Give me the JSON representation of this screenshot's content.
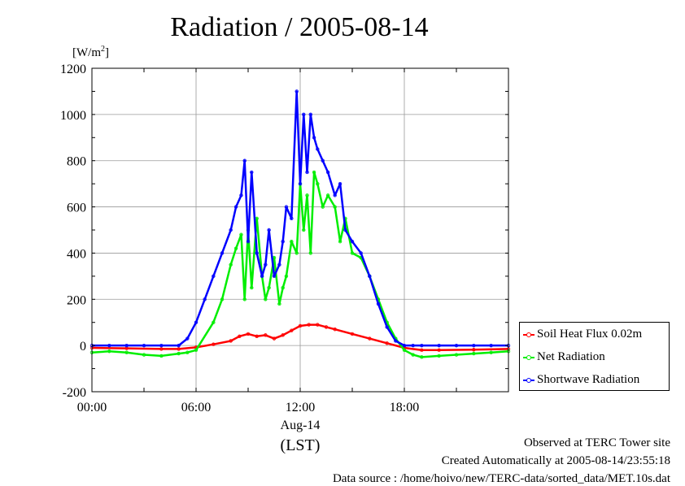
{
  "chart_data": {
    "type": "line",
    "title": "Radiation / 2005-08-14",
    "ylabel_unit_prefix": "[W/m",
    "ylabel_unit_sup": "2",
    "ylabel_unit_suffix": "]",
    "xlabel_date": "Aug-14",
    "xlabel_tz": "(LST)",
    "x_unit": "hour",
    "xlim": [
      0,
      24
    ],
    "ylim": [
      -200,
      1200
    ],
    "yticks": [
      -200,
      0,
      200,
      400,
      600,
      800,
      1000,
      1200
    ],
    "ytick_labels": [
      "-200",
      "0",
      "200",
      "400",
      "600",
      "800",
      "1000",
      "1200"
    ],
    "xticks": [
      0,
      6,
      12,
      18
    ],
    "xtick_labels": [
      "00:00",
      "06:00",
      "12:00",
      "18:00"
    ],
    "grid": true,
    "legend_position": "bottom-right, outside plot",
    "series": [
      {
        "name": "Soil Heat Flux 0.02m",
        "color": "#ff0000",
        "x": [
          0,
          2,
          4,
          5,
          6,
          7,
          8,
          8.5,
          9,
          9.5,
          10,
          10.5,
          11,
          11.5,
          12,
          12.5,
          13,
          13.5,
          14,
          15,
          16,
          17,
          18,
          19,
          20,
          22,
          24
        ],
        "y": [
          -10,
          -12,
          -15,
          -15,
          -8,
          5,
          20,
          40,
          50,
          40,
          45,
          30,
          45,
          65,
          85,
          90,
          90,
          80,
          70,
          50,
          30,
          10,
          -10,
          -20,
          -20,
          -18,
          -15
        ]
      },
      {
        "name": "Net Radiation",
        "color": "#00ee00",
        "x": [
          0,
          1,
          2,
          3,
          4,
          5,
          5.5,
          6,
          7,
          7.5,
          8,
          8.3,
          8.6,
          8.8,
          9,
          9.2,
          9.5,
          9.8,
          10,
          10.2,
          10.5,
          10.8,
          11,
          11.2,
          11.5,
          11.8,
          12,
          12.2,
          12.4,
          12.6,
          12.8,
          13,
          13.3,
          13.6,
          14,
          14.3,
          14.6,
          15,
          15.5,
          16,
          16.5,
          17,
          17.5,
          18,
          18.5,
          19,
          20,
          21,
          22,
          23,
          24
        ],
        "y": [
          -30,
          -25,
          -30,
          -40,
          -45,
          -35,
          -30,
          -20,
          100,
          200,
          350,
          420,
          480,
          200,
          500,
          250,
          550,
          300,
          200,
          250,
          380,
          180,
          250,
          300,
          450,
          400,
          700,
          500,
          650,
          400,
          750,
          700,
          600,
          650,
          600,
          450,
          550,
          400,
          380,
          300,
          200,
          100,
          30,
          -20,
          -40,
          -50,
          -45,
          -40,
          -35,
          -30,
          -25
        ]
      },
      {
        "name": "Shortwave Radiation",
        "color": "#0000ff",
        "x": [
          0,
          1,
          2,
          3,
          4,
          5,
          5.5,
          6,
          6.5,
          7,
          7.5,
          8,
          8.3,
          8.6,
          8.8,
          9,
          9.2,
          9.5,
          9.8,
          10,
          10.2,
          10.5,
          10.8,
          11,
          11.2,
          11.5,
          11.8,
          12,
          12.2,
          12.4,
          12.6,
          12.8,
          13,
          13.3,
          13.6,
          14,
          14.3,
          14.6,
          15,
          15.5,
          16,
          16.5,
          17,
          17.5,
          18,
          18.5,
          19,
          20,
          21,
          22,
          23,
          24
        ],
        "y": [
          0,
          0,
          0,
          0,
          0,
          0,
          30,
          100,
          200,
          300,
          400,
          500,
          600,
          650,
          800,
          450,
          750,
          400,
          300,
          350,
          500,
          300,
          350,
          450,
          600,
          550,
          1100,
          700,
          1000,
          750,
          1000,
          900,
          850,
          800,
          750,
          650,
          700,
          500,
          450,
          400,
          300,
          180,
          80,
          20,
          0,
          0,
          0,
          0,
          0,
          0,
          0,
          0
        ]
      }
    ]
  },
  "footer": {
    "line1": "Observed at TERC Tower site",
    "line2": "Created Automatically at 2005-08-14/23:55:18",
    "line3": "Data source : /home/hoivo/new/TERC-data/sorted_data/MET.10s.dat"
  }
}
